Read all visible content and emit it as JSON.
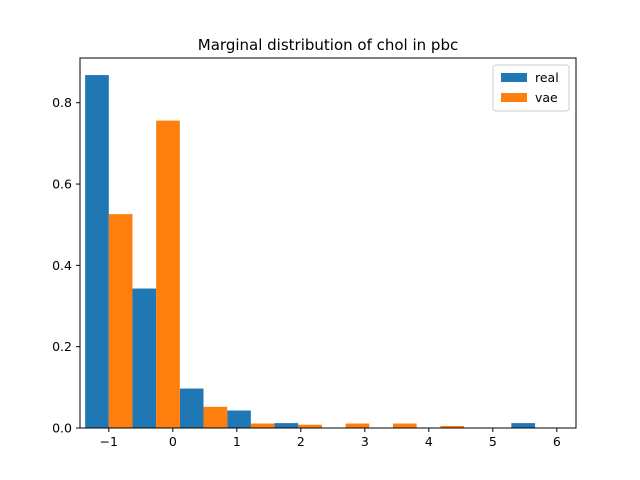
{
  "chart_data": {
    "type": "bar",
    "title": "Marginal distribution of chol in pbc",
    "xlabel": "",
    "ylabel": "",
    "bin_edges": [
      -1.37,
      -0.63,
      0.11,
      0.85,
      1.59,
      2.33,
      3.07,
      3.81,
      4.55,
      5.29,
      6.03
    ],
    "series": [
      {
        "name": "real",
        "color": "#1f77b4",
        "values": [
          0.868,
          0.343,
          0.097,
          0.043,
          0.012,
          0.0,
          0.0,
          0.0,
          0.0,
          0.012
        ]
      },
      {
        "name": "vae",
        "color": "#ff7f0e",
        "values": [
          0.526,
          0.756,
          0.052,
          0.011,
          0.008,
          0.011,
          0.011,
          0.005,
          0.0,
          0.0
        ]
      }
    ],
    "xlim": [
      -1.45,
      6.3
    ],
    "ylim": [
      0,
      0.91
    ],
    "xticks": [
      -1,
      0,
      1,
      2,
      3,
      4,
      5,
      6
    ],
    "xtick_labels": [
      "−1",
      "0",
      "1",
      "2",
      "3",
      "4",
      "5",
      "6"
    ],
    "yticks": [
      0.0,
      0.2,
      0.4,
      0.6,
      0.8
    ],
    "ytick_labels": [
      "0.0",
      "0.2",
      "0.4",
      "0.6",
      "0.8"
    ],
    "legend_position": "top-right",
    "grid": false
  }
}
